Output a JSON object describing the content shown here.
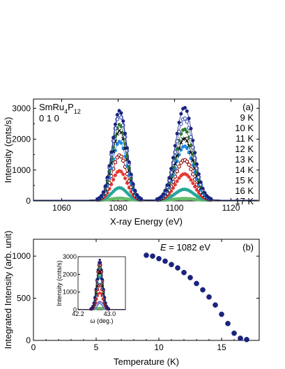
{
  "chart_data": [
    {
      "type": "line",
      "panel_label": "(a)",
      "title": "",
      "sample_label": "SmRu4P12",
      "sample_formula": {
        "base": "SmRu",
        "sub1": "4",
        "mid": "P",
        "sub2": "12"
      },
      "reflection_label": "0 1 0",
      "xlabel": "X-ray Energy  (eV)",
      "ylabel": "Intensity  (cnts/s)",
      "xlim": [
        1050,
        1130
      ],
      "ylim": [
        0,
        3300
      ],
      "x_ticks": [
        1060,
        1080,
        1100,
        1120
      ],
      "y_ticks": [
        0,
        1000,
        2000,
        3000
      ],
      "grid": false,
      "legend_position": "right",
      "peaks": [
        {
          "center": 1080.5,
          "width": 2.6
        },
        {
          "center": 1103.5,
          "width": 3.2
        }
      ],
      "series": [
        {
          "name": "9 K",
          "color": "#1a237e",
          "marker": "filled-circle",
          "peak_values": [
            2900,
            3000
          ]
        },
        {
          "name": "10 K",
          "color": "#3f51b5",
          "marker": "open-circle",
          "peak_values": [
            2750,
            2650
          ]
        },
        {
          "name": "11 K",
          "color": "#2e7d32",
          "marker": "filled-circle",
          "peak_values": [
            2450,
            2300
          ]
        },
        {
          "name": "12 K",
          "color": "#000000",
          "marker": "cross",
          "peak_values": [
            2250,
            2000
          ]
        },
        {
          "name": "13 K",
          "color": "#1e88e5",
          "marker": "filled-circle",
          "peak_values": [
            1900,
            1750
          ]
        },
        {
          "name": "14 K",
          "color": "#8e0000",
          "marker": "open-circle",
          "peak_values": [
            1450,
            1300
          ]
        },
        {
          "name": "15 K",
          "color": "#e53935",
          "marker": "filled-circle",
          "peak_values": [
            950,
            850
          ]
        },
        {
          "name": "16 K",
          "color": "#26a69a",
          "marker": "filled-circle",
          "peak_values": [
            400,
            350
          ]
        },
        {
          "name": "17 K",
          "color": "#66bb6a",
          "marker": "filled-circle",
          "peak_values": [
            60,
            50
          ]
        }
      ]
    },
    {
      "type": "scatter",
      "panel_label": "(b)",
      "title": "",
      "energy_label": {
        "var": "E",
        "value": " = 1082 eV"
      },
      "xlabel": "Temperature  (K)",
      "ylabel": "Integrated Intensity  (arb. unit)",
      "xlim": [
        0,
        18
      ],
      "ylim": [
        0,
        1200
      ],
      "x_ticks": [
        0,
        5,
        10,
        15
      ],
      "y_ticks": [
        0,
        500,
        1000
      ],
      "grid": false,
      "color": "#1a237e",
      "series": [
        {
          "x": [
            9.0,
            9.5,
            10.0,
            10.5,
            11.0,
            11.5,
            12.0,
            12.5,
            13.0,
            13.5,
            14.0,
            14.5,
            15.0,
            15.5,
            16.0,
            16.5,
            17.0
          ],
          "y": [
            1010,
            1000,
            970,
            940,
            900,
            860,
            805,
            745,
            675,
            600,
            515,
            420,
            310,
            200,
            85,
            25,
            10
          ]
        }
      ],
      "inset": {
        "type": "line",
        "xlabel": "ω  (deg.)",
        "ylabel": "Intensity  (cnts/s)",
        "xlim": [
          42.2,
          43.4
        ],
        "ylim": [
          0,
          3000
        ],
        "x_ticks": [
          42.2,
          43.0
        ],
        "y_ticks": [
          0,
          1000,
          2000,
          3000
        ],
        "peak_center": 42.75,
        "peak_width": 0.075,
        "series": [
          {
            "color": "#1a237e",
            "marker": "filled-circle",
            "peak_value": 2800
          },
          {
            "color": "#8e0000",
            "marker": "open-circle",
            "peak_value": 2650
          },
          {
            "color": "#2e7d32",
            "marker": "filled-circle",
            "peak_value": 2400
          },
          {
            "color": "#000000",
            "marker": "cross",
            "peak_value": 2150
          },
          {
            "color": "#1e88e5",
            "marker": "filled-circle",
            "peak_value": 1850
          },
          {
            "color": "#8e0000",
            "marker": "open-circle",
            "peak_value": 1400
          },
          {
            "color": "#e53935",
            "marker": "filled-circle",
            "peak_value": 950
          },
          {
            "color": "#5c6bc0",
            "marker": "open-circle",
            "peak_value": 400
          },
          {
            "color": "#66bb6a",
            "marker": "filled-circle",
            "peak_value": 80
          }
        ]
      }
    }
  ]
}
